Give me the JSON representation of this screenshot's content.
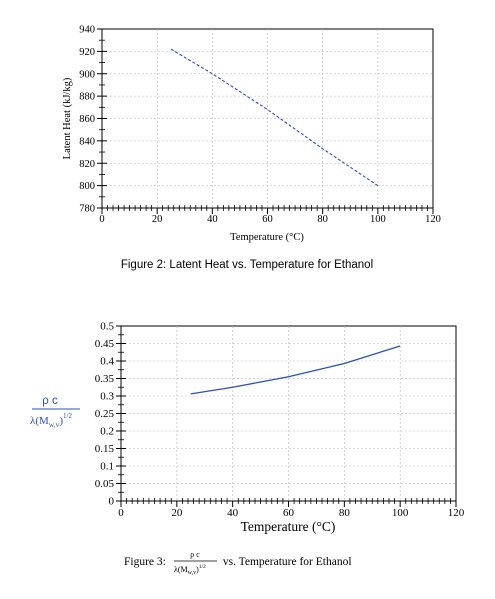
{
  "chart_data": [
    {
      "type": "line",
      "title": "",
      "xlabel": "Temperature (°C)",
      "ylabel": "Latent Heat (kJ/kg)",
      "xlim": [
        0,
        120
      ],
      "ylim": [
        780,
        940
      ],
      "xticks": [
        0,
        20,
        40,
        60,
        80,
        100,
        120
      ],
      "yticks": [
        780,
        800,
        820,
        840,
        860,
        880,
        900,
        920,
        940
      ],
      "grid": true,
      "line_style": "dashed",
      "line_color": "#2b4ec2",
      "series": [
        {
          "x": [
            25,
            40,
            60,
            80,
            100
          ],
          "y": [
            922,
            900,
            868,
            833,
            800
          ]
        }
      ]
    },
    {
      "type": "line",
      "title": "",
      "xlabel": "Temperature (°C)",
      "ylabel_parts": {
        "num": "ρ c",
        "den": "λ(M",
        "sub": "w,v",
        "sup": "1/2"
      },
      "xlim": [
        0,
        120
      ],
      "ylim": [
        0,
        0.5
      ],
      "xticks": [
        0,
        20,
        40,
        60,
        80,
        100,
        120
      ],
      "yticks": [
        0,
        0.05,
        0.1,
        0.15,
        0.2,
        0.25,
        0.3,
        0.35,
        0.4,
        0.45,
        0.5
      ],
      "ytick_labels": [
        "0",
        "0.05",
        "0.1",
        "0.15",
        "0.2",
        "0.25",
        "0.3",
        "0.35",
        "0.4",
        "0.45",
        "0.5"
      ],
      "grid": true,
      "line_style": "solid",
      "line_color": "#2b4ec2",
      "series": [
        {
          "x": [
            25,
            40,
            60,
            80,
            100
          ],
          "y": [
            0.306,
            0.325,
            0.355,
            0.393,
            0.443
          ]
        }
      ]
    }
  ],
  "captions": {
    "fig2": "Figure 2: Latent Heat vs. Temperature for Ethanol",
    "fig3_prefix": "Figure 3: ",
    "fig3_num": "ρ c",
    "fig3_den": "λ(M",
    "fig3_sub": "w,v",
    "fig3_sup": "1/2",
    "fig3_suffix": " vs. Temperature for Ethanol"
  },
  "colors": {
    "accent": "#2b4ec2",
    "text": "#000000"
  }
}
